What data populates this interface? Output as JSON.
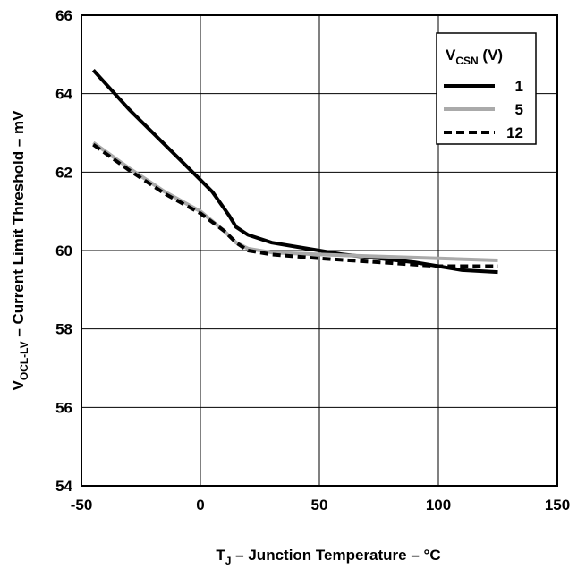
{
  "chart_data": {
    "type": "line",
    "xlabel": {
      "main": "T",
      "sub": "J",
      "rest": " – Junction Temperature  – °C"
    },
    "ylabel": {
      "main": "V",
      "sub": "OCL-LV",
      "rest": " – Current Limit Threshold  – mV"
    },
    "xlim": [
      -50,
      150
    ],
    "ylim": [
      54,
      66
    ],
    "xticks": [
      -50,
      0,
      50,
      100,
      150
    ],
    "yticks": [
      54,
      56,
      58,
      60,
      62,
      64,
      66
    ],
    "grid": true,
    "legend": {
      "placement": "top-right",
      "title": {
        "main": "V",
        "sub": "CSN",
        "rest": " (V)"
      }
    },
    "series": [
      {
        "name": "1",
        "color": "#000000",
        "dash": "solid",
        "x": [
          -45,
          -30,
          -15,
          0,
          5,
          12,
          15,
          20,
          30,
          40,
          50,
          60,
          75,
          90,
          100,
          110,
          125
        ],
        "y": [
          64.6,
          63.6,
          62.7,
          61.8,
          61.5,
          60.9,
          60.6,
          60.4,
          60.2,
          60.1,
          60.0,
          59.9,
          59.8,
          59.7,
          59.6,
          59.5,
          59.45
        ]
      },
      {
        "name": "5",
        "color": "#aaaaaa",
        "dash": "solid",
        "x": [
          -45,
          -30,
          -15,
          0,
          10,
          15,
          20,
          30,
          50,
          75,
          100,
          125
        ],
        "y": [
          62.75,
          62.1,
          61.5,
          61.0,
          60.5,
          60.2,
          60.05,
          59.95,
          59.9,
          59.85,
          59.8,
          59.75
        ]
      },
      {
        "name": "12",
        "color": "#000000",
        "dash": "dashed",
        "x": [
          -45,
          -30,
          -15,
          0,
          10,
          15,
          20,
          30,
          50,
          75,
          100,
          110,
          125
        ],
        "y": [
          62.7,
          62.05,
          61.45,
          60.95,
          60.5,
          60.2,
          60.0,
          59.9,
          59.8,
          59.7,
          59.6,
          59.6,
          59.6
        ]
      }
    ]
  }
}
